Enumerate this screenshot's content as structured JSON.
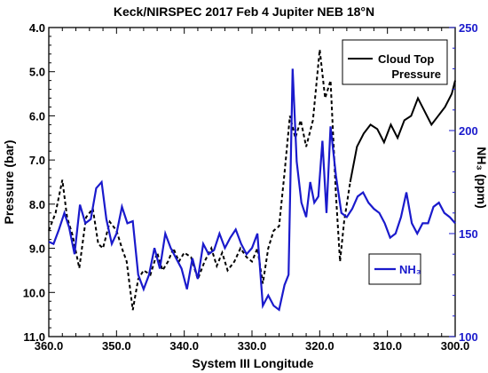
{
  "chart_data": {
    "type": "line",
    "title": "Keck/NIRSPEC 2017 Feb 4 Jupiter NEB 18°N",
    "xlabel": "System III Longitude",
    "ylabel_left": "Pressure (bar)",
    "ylabel_right": "NH₃ (ppm)",
    "xlim": [
      360.0,
      300.0
    ],
    "ylim_left": [
      11.0,
      4.0
    ],
    "ylim_right": [
      100,
      250
    ],
    "x_ticks": [
      "360.0",
      "350.0",
      "340.0",
      "330.0",
      "320.0",
      "310.0",
      "300.0"
    ],
    "y_left_ticks": [
      "4.0",
      "5.0",
      "6.0",
      "7.0",
      "8.0",
      "9.0",
      "10.0",
      "11.0"
    ],
    "y_right_ticks": [
      "100",
      "150",
      "200",
      "250"
    ],
    "grid": false,
    "colors": {
      "pressure": "#000000",
      "nh3": "#1a1acc"
    },
    "legend": [
      {
        "key": "pressure",
        "label_lines": [
          "Cloud Top",
          "Pressure"
        ],
        "placement": "top-right"
      },
      {
        "key": "nh3",
        "label": "NH₃",
        "placement": "lower-right"
      }
    ],
    "series": [
      {
        "name": "Cloud Top Pressure",
        "axis": "left",
        "color": "#000000",
        "x": [
          360.0,
          359.0,
          358.0,
          357.3,
          356.5,
          355.5,
          354.5,
          353.5,
          352.7,
          352.0,
          351.0,
          350.0,
          349.2,
          348.5,
          347.6,
          346.8,
          346.0,
          345.0,
          344.0,
          343.2,
          342.4,
          341.6,
          340.8,
          340.0,
          339.0,
          338.0,
          337.0,
          336.0,
          335.2,
          334.4,
          333.6,
          332.6,
          331.7,
          330.8,
          330.0,
          329.2,
          328.4,
          327.6,
          326.8,
          326.0,
          325.2,
          324.4,
          323.6,
          322.8,
          322.0,
          321.0,
          320.0,
          319.2,
          318.4,
          317.6,
          317.0,
          316.4,
          315.5,
          314.5,
          313.5,
          312.5,
          311.5,
          310.5,
          309.5,
          308.5,
          307.5,
          306.5,
          305.5,
          304.5,
          303.5,
          302.5,
          301.5,
          300.5,
          300.0
        ],
        "y": [
          8.6,
          8.2,
          7.45,
          8.3,
          8.7,
          9.45,
          8.3,
          8.1,
          8.9,
          9.0,
          8.4,
          8.6,
          9.0,
          9.3,
          10.4,
          9.7,
          9.5,
          9.6,
          9.1,
          9.5,
          9.3,
          9.0,
          9.3,
          9.1,
          9.2,
          9.7,
          9.3,
          9.0,
          9.4,
          9.1,
          9.5,
          9.3,
          9.0,
          9.2,
          9.3,
          9.0,
          9.8,
          9.0,
          8.6,
          8.5,
          7.3,
          6.0,
          6.5,
          6.1,
          6.7,
          6.1,
          4.5,
          5.6,
          5.2,
          7.8,
          9.3,
          8.4,
          7.5,
          6.7,
          6.4,
          6.2,
          6.3,
          6.6,
          6.2,
          6.5,
          6.1,
          6.0,
          5.6,
          5.9,
          6.2,
          6.0,
          5.8,
          5.5,
          5.2
        ],
        "dashed_x_range": [
          360.0,
          315.5
        ]
      },
      {
        "name": "NH₃",
        "axis": "right",
        "color": "#1a1acc",
        "x": [
          360.0,
          359.3,
          358.5,
          357.7,
          357.0,
          356.2,
          355.4,
          354.6,
          353.8,
          353.0,
          352.2,
          351.5,
          350.7,
          350.0,
          349.2,
          348.4,
          347.6,
          346.8,
          346.0,
          345.2,
          344.4,
          343.6,
          342.8,
          342.0,
          341.2,
          340.4,
          339.6,
          338.8,
          338.0,
          337.2,
          336.4,
          335.6,
          334.8,
          334.0,
          333.2,
          332.4,
          331.6,
          330.8,
          330.0,
          329.2,
          328.4,
          327.6,
          326.8,
          326.0,
          325.2,
          324.6,
          324.0,
          323.4,
          322.7,
          322.0,
          321.4,
          320.8,
          320.2,
          319.6,
          319.0,
          318.4,
          317.6,
          316.8,
          316.0,
          315.2,
          314.4,
          313.6,
          312.8,
          312.0,
          311.2,
          310.4,
          309.6,
          308.8,
          308.0,
          307.2,
          306.4,
          305.6,
          304.8,
          304.0,
          303.2,
          302.4,
          301.6,
          300.8,
          300.0
        ],
        "y": [
          146,
          145,
          152,
          160,
          153,
          140,
          164,
          155,
          157,
          172,
          175,
          157,
          145,
          150,
          163,
          155,
          156,
          130,
          123,
          130,
          143,
          133,
          150,
          143,
          138,
          133,
          123,
          138,
          128,
          145,
          140,
          142,
          150,
          143,
          148,
          152,
          145,
          140,
          143,
          150,
          115,
          120,
          115,
          113,
          125,
          130,
          230,
          185,
          165,
          158,
          175,
          165,
          168,
          195,
          160,
          202,
          178,
          160,
          158,
          162,
          168,
          170,
          165,
          162,
          160,
          155,
          148,
          150,
          158,
          170,
          155,
          150,
          155,
          155,
          163,
          165,
          160,
          158,
          155
        ]
      }
    ]
  }
}
